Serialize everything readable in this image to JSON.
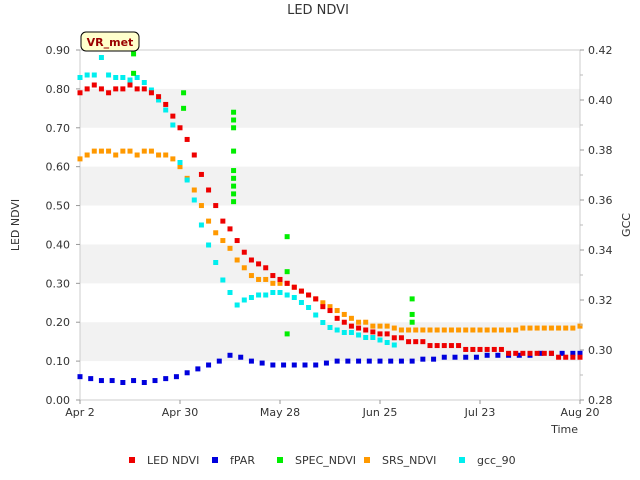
{
  "chart_data": {
    "type": "scatter",
    "title": "LED NDVI",
    "xlabel": "Time",
    "ylabel_left": "LED NDVI",
    "ylabel_right": "GCC",
    "ylim_left": [
      0.0,
      0.9
    ],
    "ylim_right": [
      0.28,
      0.42
    ],
    "xlim": [
      0,
      140
    ],
    "site_label": "VR_met",
    "x_ticks": [
      {
        "label": "Apr 2",
        "day": 0
      },
      {
        "label": "Apr 30",
        "day": 28
      },
      {
        "label": "May 28",
        "day": 56
      },
      {
        "label": "Jun 25",
        "day": 84
      },
      {
        "label": "Jul 23",
        "day": 112
      },
      {
        "label": "Aug 20",
        "day": 140
      }
    ],
    "y_ticks_left": [
      "0.00",
      "0.10",
      "0.20",
      "0.30",
      "0.40",
      "0.50",
      "0.60",
      "0.70",
      "0.80",
      "0.90"
    ],
    "y_ticks_right": [
      "0.28",
      "0.30",
      "0.32",
      "0.34",
      "0.36",
      "0.38",
      "0.40",
      "0.42"
    ],
    "series": [
      {
        "name": "LED NDVI",
        "color": "#ee0000",
        "axis": "left",
        "points": [
          [
            0,
            0.79
          ],
          [
            2,
            0.8
          ],
          [
            4,
            0.81
          ],
          [
            6,
            0.8
          ],
          [
            8,
            0.79
          ],
          [
            10,
            0.8
          ],
          [
            12,
            0.8
          ],
          [
            14,
            0.81
          ],
          [
            16,
            0.8
          ],
          [
            18,
            0.8
          ],
          [
            20,
            0.79
          ],
          [
            22,
            0.78
          ],
          [
            24,
            0.76
          ],
          [
            26,
            0.73
          ],
          [
            28,
            0.7
          ],
          [
            30,
            0.67
          ],
          [
            32,
            0.63
          ],
          [
            34,
            0.58
          ],
          [
            36,
            0.54
          ],
          [
            38,
            0.5
          ],
          [
            40,
            0.46
          ],
          [
            42,
            0.44
          ],
          [
            44,
            0.41
          ],
          [
            46,
            0.38
          ],
          [
            48,
            0.36
          ],
          [
            50,
            0.35
          ],
          [
            52,
            0.34
          ],
          [
            54,
            0.32
          ],
          [
            56,
            0.31
          ],
          [
            58,
            0.3
          ],
          [
            60,
            0.29
          ],
          [
            62,
            0.28
          ],
          [
            64,
            0.27
          ],
          [
            66,
            0.26
          ],
          [
            68,
            0.24
          ],
          [
            70,
            0.23
          ],
          [
            72,
            0.21
          ],
          [
            74,
            0.2
          ],
          [
            76,
            0.19
          ],
          [
            78,
            0.185
          ],
          [
            80,
            0.18
          ],
          [
            82,
            0.175
          ],
          [
            84,
            0.17
          ],
          [
            86,
            0.17
          ],
          [
            88,
            0.16
          ],
          [
            90,
            0.16
          ],
          [
            92,
            0.15
          ],
          [
            94,
            0.15
          ],
          [
            96,
            0.15
          ],
          [
            98,
            0.14
          ],
          [
            100,
            0.14
          ],
          [
            102,
            0.14
          ],
          [
            104,
            0.14
          ],
          [
            106,
            0.14
          ],
          [
            108,
            0.13
          ],
          [
            110,
            0.13
          ],
          [
            112,
            0.13
          ],
          [
            114,
            0.13
          ],
          [
            116,
            0.13
          ],
          [
            118,
            0.13
          ],
          [
            120,
            0.12
          ],
          [
            122,
            0.12
          ],
          [
            124,
            0.12
          ],
          [
            126,
            0.12
          ],
          [
            128,
            0.12
          ],
          [
            130,
            0.12
          ],
          [
            132,
            0.12
          ],
          [
            134,
            0.11
          ],
          [
            136,
            0.11
          ],
          [
            138,
            0.11
          ],
          [
            140,
            0.11
          ]
        ]
      },
      {
        "name": "fPAR",
        "color": "#0000dd",
        "axis": "left",
        "points": [
          [
            0,
            0.06
          ],
          [
            3,
            0.055
          ],
          [
            6,
            0.05
          ],
          [
            9,
            0.05
          ],
          [
            12,
            0.045
          ],
          [
            15,
            0.05
          ],
          [
            18,
            0.045
          ],
          [
            21,
            0.05
          ],
          [
            24,
            0.055
          ],
          [
            27,
            0.06
          ],
          [
            30,
            0.07
          ],
          [
            33,
            0.08
          ],
          [
            36,
            0.09
          ],
          [
            39,
            0.1
          ],
          [
            42,
            0.115
          ],
          [
            45,
            0.11
          ],
          [
            48,
            0.1
          ],
          [
            51,
            0.095
          ],
          [
            54,
            0.09
          ],
          [
            57,
            0.09
          ],
          [
            60,
            0.09
          ],
          [
            63,
            0.09
          ],
          [
            66,
            0.09
          ],
          [
            69,
            0.095
          ],
          [
            72,
            0.1
          ],
          [
            75,
            0.1
          ],
          [
            78,
            0.1
          ],
          [
            81,
            0.1
          ],
          [
            84,
            0.1
          ],
          [
            87,
            0.1
          ],
          [
            90,
            0.1
          ],
          [
            93,
            0.1
          ],
          [
            96,
            0.105
          ],
          [
            99,
            0.105
          ],
          [
            102,
            0.11
          ],
          [
            105,
            0.11
          ],
          [
            108,
            0.11
          ],
          [
            111,
            0.11
          ],
          [
            114,
            0.115
          ],
          [
            117,
            0.115
          ],
          [
            120,
            0.115
          ],
          [
            123,
            0.115
          ],
          [
            126,
            0.115
          ],
          [
            129,
            0.12
          ],
          [
            132,
            0.12
          ],
          [
            135,
            0.12
          ],
          [
            138,
            0.12
          ],
          [
            140,
            0.12
          ]
        ]
      },
      {
        "name": "SPEC_NDVI",
        "color": "#00ee00",
        "axis": "left",
        "points": [
          [
            15,
            0.89
          ],
          [
            15,
            0.84
          ],
          [
            29,
            0.79
          ],
          [
            29,
            0.75
          ],
          [
            43,
            0.74
          ],
          [
            43,
            0.72
          ],
          [
            43,
            0.7
          ],
          [
            43,
            0.64
          ],
          [
            43,
            0.59
          ],
          [
            43,
            0.57
          ],
          [
            43,
            0.55
          ],
          [
            43,
            0.53
          ],
          [
            43,
            0.51
          ],
          [
            58,
            0.42
          ],
          [
            58,
            0.33
          ],
          [
            58,
            0.17
          ],
          [
            93,
            0.26
          ],
          [
            93,
            0.22
          ],
          [
            93,
            0.2
          ]
        ]
      },
      {
        "name": "SRS_NDVI",
        "color": "#ff9900",
        "axis": "left",
        "points": [
          [
            0,
            0.62
          ],
          [
            2,
            0.63
          ],
          [
            4,
            0.64
          ],
          [
            6,
            0.64
          ],
          [
            8,
            0.64
          ],
          [
            10,
            0.63
          ],
          [
            12,
            0.64
          ],
          [
            14,
            0.64
          ],
          [
            16,
            0.63
          ],
          [
            18,
            0.64
          ],
          [
            20,
            0.64
          ],
          [
            22,
            0.63
          ],
          [
            24,
            0.63
          ],
          [
            26,
            0.62
          ],
          [
            28,
            0.6
          ],
          [
            30,
            0.57
          ],
          [
            32,
            0.54
          ],
          [
            34,
            0.5
          ],
          [
            36,
            0.46
          ],
          [
            38,
            0.43
          ],
          [
            40,
            0.41
          ],
          [
            42,
            0.39
          ],
          [
            44,
            0.36
          ],
          [
            46,
            0.34
          ],
          [
            48,
            0.32
          ],
          [
            50,
            0.31
          ],
          [
            52,
            0.31
          ],
          [
            54,
            0.3
          ],
          [
            56,
            0.3
          ],
          [
            58,
            0.3
          ],
          [
            60,
            0.29
          ],
          [
            62,
            0.28
          ],
          [
            64,
            0.27
          ],
          [
            66,
            0.26
          ],
          [
            68,
            0.25
          ],
          [
            70,
            0.24
          ],
          [
            72,
            0.23
          ],
          [
            74,
            0.22
          ],
          [
            76,
            0.21
          ],
          [
            78,
            0.2
          ],
          [
            80,
            0.2
          ],
          [
            82,
            0.19
          ],
          [
            84,
            0.19
          ],
          [
            86,
            0.19
          ],
          [
            88,
            0.185
          ],
          [
            90,
            0.18
          ],
          [
            92,
            0.18
          ],
          [
            94,
            0.18
          ],
          [
            96,
            0.18
          ],
          [
            98,
            0.18
          ],
          [
            100,
            0.18
          ],
          [
            102,
            0.18
          ],
          [
            104,
            0.18
          ],
          [
            106,
            0.18
          ],
          [
            108,
            0.18
          ],
          [
            110,
            0.18
          ],
          [
            112,
            0.18
          ],
          [
            114,
            0.18
          ],
          [
            116,
            0.18
          ],
          [
            118,
            0.18
          ],
          [
            120,
            0.18
          ],
          [
            122,
            0.18
          ],
          [
            124,
            0.185
          ],
          [
            126,
            0.185
          ],
          [
            128,
            0.185
          ],
          [
            130,
            0.185
          ],
          [
            132,
            0.185
          ],
          [
            134,
            0.185
          ],
          [
            136,
            0.185
          ],
          [
            138,
            0.185
          ],
          [
            140,
            0.19
          ]
        ]
      },
      {
        "name": "gcc_90",
        "color": "#00eeee",
        "axis": "right",
        "points": [
          [
            0,
            0.409
          ],
          [
            2,
            0.41
          ],
          [
            4,
            0.41
          ],
          [
            6,
            0.417
          ],
          [
            8,
            0.41
          ],
          [
            10,
            0.409
          ],
          [
            12,
            0.409
          ],
          [
            14,
            0.408
          ],
          [
            16,
            0.409
          ],
          [
            18,
            0.407
          ],
          [
            20,
            0.404
          ],
          [
            22,
            0.4
          ],
          [
            24,
            0.396
          ],
          [
            26,
            0.39
          ],
          [
            28,
            0.375
          ],
          [
            30,
            0.368
          ],
          [
            32,
            0.36
          ],
          [
            34,
            0.35
          ],
          [
            36,
            0.342
          ],
          [
            38,
            0.335
          ],
          [
            40,
            0.328
          ],
          [
            42,
            0.323
          ],
          [
            44,
            0.318
          ],
          [
            46,
            0.32
          ],
          [
            48,
            0.321
          ],
          [
            50,
            0.322
          ],
          [
            52,
            0.322
          ],
          [
            54,
            0.323
          ],
          [
            56,
            0.323
          ],
          [
            58,
            0.322
          ],
          [
            60,
            0.321
          ],
          [
            62,
            0.319
          ],
          [
            64,
            0.317
          ],
          [
            66,
            0.314
          ],
          [
            68,
            0.311
          ],
          [
            70,
            0.309
          ],
          [
            72,
            0.308
          ],
          [
            74,
            0.307
          ],
          [
            76,
            0.307
          ],
          [
            78,
            0.306
          ],
          [
            80,
            0.305
          ],
          [
            82,
            0.305
          ],
          [
            84,
            0.304
          ],
          [
            86,
            0.303
          ],
          [
            88,
            0.302
          ]
        ]
      }
    ]
  }
}
